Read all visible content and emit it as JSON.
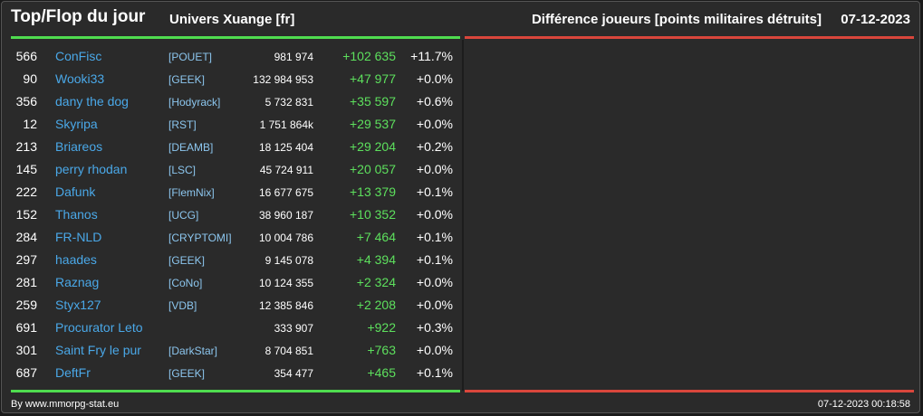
{
  "header": {
    "title": "Top/Flop du jour",
    "subtitle": "Univers Xuange [fr]",
    "metric": "Différence joueurs [points militaires détruits]",
    "date": "07-12-2023"
  },
  "colors": {
    "gain_bar": "#4fdc4f",
    "loss_bar": "#d9463c",
    "player_name": "#4aa8e8",
    "alliance": "#8cc6ee",
    "positive_diff": "#5de05d"
  },
  "top": [
    {
      "rank": "566",
      "name": "ConFisc",
      "alliance": "[POUET]",
      "points": "981 974",
      "diff": "+102 635",
      "pct": "+11.7%"
    },
    {
      "rank": "90",
      "name": "Wooki33",
      "alliance": "[GEEK]",
      "points": "132 984 953",
      "diff": "+47 977",
      "pct": "+0.0%"
    },
    {
      "rank": "356",
      "name": "dany the dog",
      "alliance": "[Hodyrack]",
      "points": "5 732 831",
      "diff": "+35 597",
      "pct": "+0.6%"
    },
    {
      "rank": "12",
      "name": "Skyripa",
      "alliance": "[RST]",
      "points": "1 751 864k",
      "diff": "+29 537",
      "pct": "+0.0%"
    },
    {
      "rank": "213",
      "name": "Briareos",
      "alliance": "[DEAMB]",
      "points": "18 125 404",
      "diff": "+29 204",
      "pct": "+0.2%"
    },
    {
      "rank": "145",
      "name": "perry rhodan",
      "alliance": "[LSC]",
      "points": "45 724 911",
      "diff": "+20 057",
      "pct": "+0.0%"
    },
    {
      "rank": "222",
      "name": "Dafunk",
      "alliance": "[FlemNix]",
      "points": "16 677 675",
      "diff": "+13 379",
      "pct": "+0.1%"
    },
    {
      "rank": "152",
      "name": "Thanos",
      "alliance": "[UCG]",
      "points": "38 960 187",
      "diff": "+10 352",
      "pct": "+0.0%"
    },
    {
      "rank": "284",
      "name": "FR-NLD",
      "alliance": "[CRYPTOMI]",
      "points": "10 004 786",
      "diff": "+7 464",
      "pct": "+0.1%"
    },
    {
      "rank": "297",
      "name": "haades",
      "alliance": "[GEEK]",
      "points": "9 145 078",
      "diff": "+4 394",
      "pct": "+0.1%"
    },
    {
      "rank": "281",
      "name": "Raznag",
      "alliance": "[CoNo]",
      "points": "10 124 355",
      "diff": "+2 324",
      "pct": "+0.0%"
    },
    {
      "rank": "259",
      "name": "Styx127",
      "alliance": "[VDB]",
      "points": "12 385 846",
      "diff": "+2 208",
      "pct": "+0.0%"
    },
    {
      "rank": "691",
      "name": "Procurator Leto",
      "alliance": "",
      "points": "333 907",
      "diff": "+922",
      "pct": "+0.3%"
    },
    {
      "rank": "301",
      "name": "Saint Fry le pur",
      "alliance": "[DarkStar]",
      "points": "8 704 851",
      "diff": "+763",
      "pct": "+0.0%"
    },
    {
      "rank": "687",
      "name": "DeftFr",
      "alliance": "[GEEK]",
      "points": "354 477",
      "diff": "+465",
      "pct": "+0.1%"
    }
  ],
  "footer": {
    "credit": "By www.mmorpg-stat.eu",
    "timestamp": "07-12-2023 00:18:58"
  }
}
